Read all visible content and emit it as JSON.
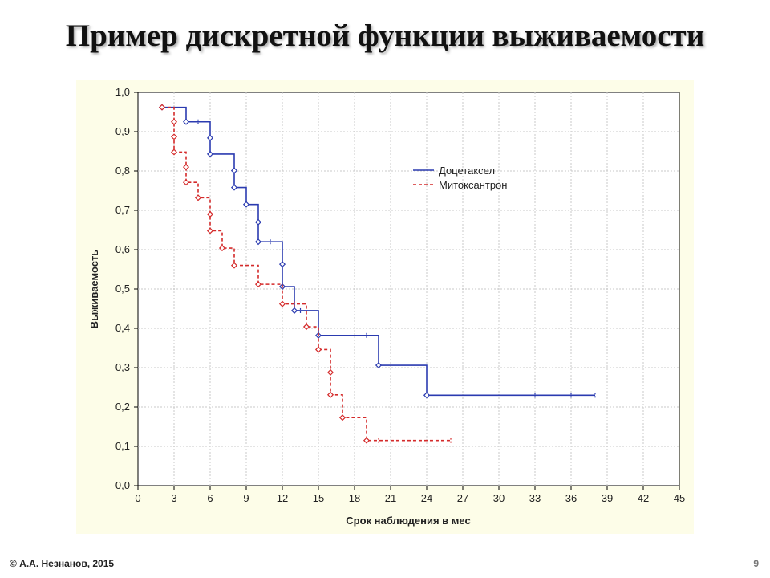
{
  "slide": {
    "title": "Пример дискретной функции выживаемости",
    "copyright": "© А.А. Незнанов, 2015",
    "page_number": "9"
  },
  "colors": {
    "panel_background": "#fdfde8",
    "plot_background": "#ffffff",
    "grid": "#c8c8c8",
    "axis": "#000000"
  },
  "chart_data": {
    "type": "line",
    "title": "",
    "xlabel": "Срок наблюдения в мес",
    "ylabel": "Выживаемость",
    "xlim": [
      0,
      45
    ],
    "ylim": [
      0,
      1
    ],
    "x_ticks": [
      0,
      3,
      6,
      9,
      12,
      15,
      18,
      21,
      24,
      27,
      30,
      33,
      36,
      39,
      42,
      45
    ],
    "x_tick_labels": [
      "0",
      "3",
      "6",
      "9",
      "12",
      "15",
      "18",
      "21",
      "24",
      "27",
      "30",
      "33",
      "36",
      "39",
      "42",
      "45"
    ],
    "y_ticks": [
      0,
      0.1,
      0.2,
      0.3,
      0.4,
      0.5,
      0.6,
      0.7,
      0.8,
      0.9,
      1.0
    ],
    "y_tick_labels": [
      "0,0",
      "0,1",
      "0,2",
      "0,3",
      "0,4",
      "0,5",
      "0,6",
      "0,7",
      "0,8",
      "0,9",
      "1,0"
    ],
    "grid": true,
    "legend_position": "top-right",
    "series": [
      {
        "name": "Доцетаксел",
        "color": "#2b3bb0",
        "line_style": "solid",
        "start": [
          2,
          0.962
        ],
        "steps": [
          [
            4,
            0.925
          ],
          [
            6,
            0.884
          ],
          [
            6,
            0.843
          ],
          [
            8,
            0.801
          ],
          [
            8,
            0.758
          ],
          [
            9,
            0.715
          ],
          [
            10,
            0.67
          ],
          [
            10,
            0.62
          ],
          [
            12,
            0.563
          ],
          [
            12,
            0.506
          ],
          [
            13,
            0.445
          ],
          [
            15,
            0.382
          ],
          [
            20,
            0.306
          ],
          [
            24,
            0.23
          ]
        ],
        "censored": [
          [
            5,
            0.925
          ],
          [
            11,
            0.62
          ],
          [
            13.5,
            0.445
          ],
          [
            19,
            0.382
          ],
          [
            33,
            0.23
          ],
          [
            36,
            0.23
          ],
          [
            38,
            0.23
          ]
        ],
        "end_x": 38
      },
      {
        "name": "Митоксантрон",
        "color": "#d42a2a",
        "line_style": "dashed",
        "start": [
          2,
          0.962
        ],
        "steps": [
          [
            3,
            0.925
          ],
          [
            3,
            0.887
          ],
          [
            3,
            0.848
          ],
          [
            4,
            0.81
          ],
          [
            4,
            0.771
          ],
          [
            5,
            0.732
          ],
          [
            6,
            0.69
          ],
          [
            6,
            0.648
          ],
          [
            7,
            0.604
          ],
          [
            8,
            0.56
          ],
          [
            10,
            0.512
          ],
          [
            12,
            0.462
          ],
          [
            14,
            0.404
          ],
          [
            15,
            0.346
          ],
          [
            16,
            0.288
          ],
          [
            16,
            0.231
          ],
          [
            17,
            0.173
          ],
          [
            19,
            0.115
          ]
        ],
        "censored": [
          [
            13,
            0.462
          ],
          [
            20,
            0.115
          ],
          [
            26,
            0.115
          ]
        ],
        "end_x": 26
      }
    ]
  }
}
